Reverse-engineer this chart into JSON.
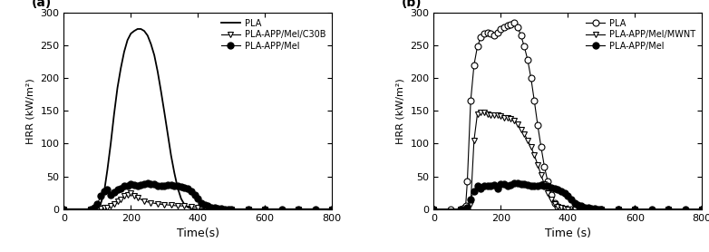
{
  "panel_a": {
    "title": "(a)",
    "xlabel": "Time(s)",
    "ylabel": "HRR (kW/m²)",
    "xlim": [
      0,
      800
    ],
    "ylim": [
      0,
      300
    ],
    "yticks": [
      0,
      50,
      100,
      150,
      200,
      250,
      300
    ],
    "xticks": [
      0,
      200,
      400,
      600,
      800
    ],
    "series": [
      {
        "label": "PLA",
        "marker": "none",
        "color": "#000000",
        "linewidth": 1.3,
        "x": [
          0,
          50,
          90,
          100,
          110,
          120,
          130,
          140,
          150,
          160,
          170,
          180,
          190,
          200,
          210,
          220,
          230,
          240,
          250,
          260,
          270,
          280,
          290,
          300,
          310,
          320,
          330,
          340,
          350,
          360,
          370,
          380,
          390,
          400,
          410,
          420,
          430,
          440,
          450,
          460,
          500,
          550,
          600,
          700,
          800
        ],
        "y": [
          0,
          0,
          0,
          2,
          8,
          25,
          60,
          100,
          145,
          185,
          215,
          240,
          258,
          268,
          272,
          275,
          275,
          272,
          265,
          252,
          235,
          210,
          180,
          148,
          115,
          82,
          55,
          32,
          16,
          7,
          3,
          1,
          0,
          0,
          0,
          0,
          0,
          0,
          0,
          0,
          0,
          0,
          0,
          0,
          0
        ]
      },
      {
        "label": "PLA-APP/Mel/C30B",
        "marker": "triangle_down_open",
        "color": "#000000",
        "linewidth": 0.8,
        "markevery": 1,
        "markersize": 5,
        "x": [
          0,
          80,
          100,
          110,
          120,
          130,
          140,
          150,
          160,
          170,
          180,
          190,
          200,
          210,
          220,
          240,
          260,
          280,
          300,
          320,
          340,
          360,
          380,
          400,
          420,
          440,
          460,
          480,
          500,
          550,
          600,
          700,
          800
        ],
        "y": [
          0,
          0,
          0,
          1,
          2,
          3,
          5,
          8,
          12,
          15,
          20,
          22,
          25,
          20,
          18,
          12,
          10,
          8,
          7,
          6,
          5,
          5,
          4,
          3,
          2,
          1,
          1,
          0,
          0,
          0,
          0,
          0,
          0
        ]
      },
      {
        "label": "PLA-APP/Mel",
        "marker": "circle_filled",
        "color": "#000000",
        "linewidth": 0.8,
        "markevery": 1,
        "markersize": 5,
        "x": [
          0,
          80,
          90,
          100,
          110,
          120,
          130,
          140,
          150,
          160,
          170,
          180,
          190,
          200,
          210,
          220,
          230,
          240,
          250,
          260,
          270,
          280,
          290,
          300,
          310,
          320,
          330,
          340,
          350,
          360,
          370,
          380,
          390,
          400,
          410,
          420,
          430,
          440,
          450,
          460,
          470,
          480,
          490,
          500,
          550,
          600,
          650,
          700,
          750,
          800
        ],
        "y": [
          0,
          0,
          2,
          8,
          20,
          28,
          30,
          22,
          26,
          30,
          32,
          35,
          35,
          38,
          37,
          36,
          37,
          38,
          40,
          39,
          38,
          36,
          35,
          36,
          37,
          37,
          36,
          35,
          34,
          33,
          32,
          28,
          22,
          16,
          10,
          7,
          5,
          3,
          2,
          1,
          1,
          0,
          0,
          0,
          0,
          0,
          0,
          0,
          0,
          0
        ]
      }
    ]
  },
  "panel_b": {
    "title": "(b)",
    "xlabel": "Time (s)",
    "ylabel": "HRR (kW/m²)",
    "xlim": [
      0,
      800
    ],
    "ylim": [
      0,
      300
    ],
    "yticks": [
      0,
      50,
      100,
      150,
      200,
      250,
      300
    ],
    "xticks": [
      0,
      200,
      400,
      600,
      800
    ],
    "series": [
      {
        "label": "PLA",
        "marker": "circle_open",
        "color": "#000000",
        "linewidth": 0.8,
        "markevery": 1,
        "markersize": 5,
        "x": [
          0,
          50,
          80,
          90,
          95,
          100,
          110,
          120,
          130,
          140,
          150,
          160,
          170,
          180,
          190,
          200,
          210,
          220,
          230,
          240,
          250,
          260,
          270,
          280,
          290,
          300,
          310,
          320,
          330,
          340,
          350,
          360,
          370,
          380,
          390,
          400,
          410,
          420,
          430,
          440,
          450,
          460,
          480,
          500,
          550,
          600,
          700,
          800
        ],
        "y": [
          0,
          0,
          0,
          2,
          5,
          42,
          165,
          220,
          248,
          262,
          268,
          270,
          268,
          265,
          270,
          275,
          278,
          280,
          282,
          284,
          278,
          265,
          248,
          228,
          200,
          165,
          128,
          95,
          65,
          42,
          22,
          10,
          4,
          1,
          0,
          0,
          0,
          0,
          0,
          0,
          0,
          0,
          0,
          0,
          0,
          0,
          0,
          0
        ]
      },
      {
        "label": "PLA-APP/Mel/MWNT",
        "marker": "triangle_down_open",
        "color": "#000000",
        "linewidth": 0.8,
        "markevery": 1,
        "markersize": 5,
        "x": [
          0,
          80,
          100,
          110,
          120,
          130,
          140,
          150,
          160,
          170,
          180,
          190,
          200,
          210,
          220,
          230,
          240,
          250,
          260,
          270,
          280,
          290,
          300,
          310,
          320,
          330,
          340,
          350,
          360,
          370,
          380,
          390,
          400,
          420,
          450,
          500,
          550,
          600,
          700,
          800
        ],
        "y": [
          0,
          0,
          0,
          8,
          105,
          145,
          148,
          147,
          145,
          144,
          143,
          143,
          142,
          140,
          140,
          138,
          135,
          130,
          122,
          115,
          105,
          95,
          82,
          68,
          52,
          38,
          25,
          15,
          8,
          4,
          2,
          1,
          0,
          0,
          0,
          0,
          0,
          0,
          0,
          0
        ]
      },
      {
        "label": "PLA-APP/Mel",
        "marker": "circle_filled",
        "color": "#000000",
        "linewidth": 0.8,
        "markevery": 1,
        "markersize": 5,
        "x": [
          0,
          80,
          100,
          110,
          120,
          130,
          140,
          150,
          160,
          170,
          180,
          190,
          200,
          210,
          220,
          230,
          240,
          250,
          260,
          270,
          280,
          290,
          300,
          310,
          320,
          330,
          340,
          350,
          360,
          370,
          380,
          390,
          400,
          410,
          420,
          430,
          440,
          450,
          460,
          470,
          480,
          490,
          500,
          550,
          600,
          650,
          700,
          750,
          800
        ],
        "y": [
          0,
          0,
          2,
          15,
          28,
          36,
          32,
          36,
          36,
          35,
          37,
          32,
          38,
          38,
          36,
          37,
          40,
          40,
          39,
          38,
          37,
          35,
          35,
          36,
          37,
          36,
          35,
          33,
          32,
          30,
          28,
          25,
          20,
          15,
          10,
          7,
          5,
          3,
          2,
          1,
          1,
          0,
          0,
          0,
          0,
          0,
          0,
          0,
          0
        ]
      }
    ]
  }
}
